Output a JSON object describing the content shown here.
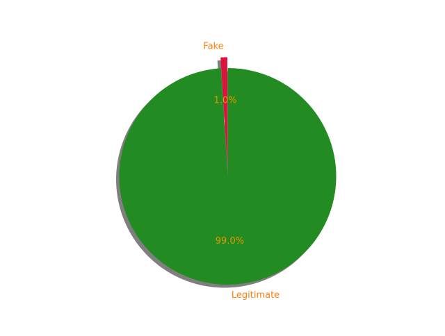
{
  "chart_data": {
    "type": "pie",
    "labels": [
      "Fake",
      "Legitimate"
    ],
    "values": [
      1.0,
      99.0
    ],
    "pct_labels": [
      "1.0%",
      "99.0%"
    ],
    "colors": [
      "#dc143c",
      "#228b22"
    ],
    "label_color": "#ff7f0e",
    "pct_color": "#e69500",
    "explode": [
      0.1,
      0
    ],
    "shadow": true,
    "start_angle_deg": 90
  }
}
